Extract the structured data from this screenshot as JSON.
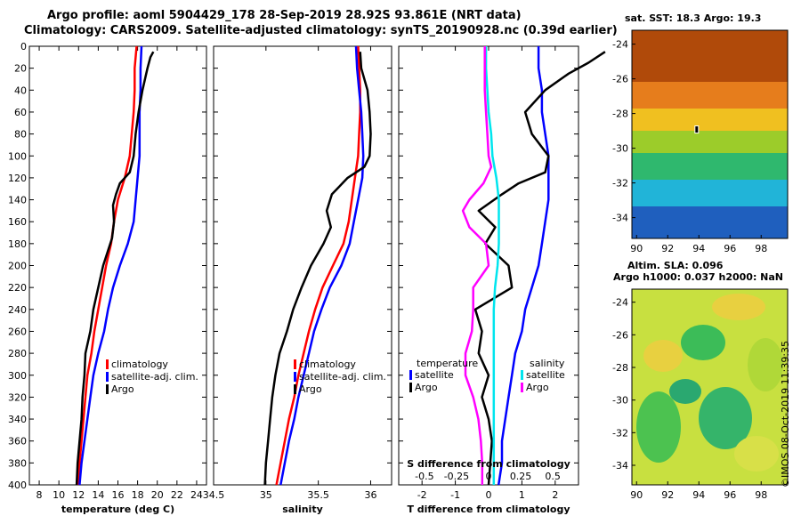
{
  "title": {
    "line1": "Argo profile: aoml 5904429_178 28-Sep-2019 28.92S 93.861E (NRT data)",
    "line2": "Climatology: CARS2009. Satellite-adjusted climatology: synTS_20190928.nc (0.39d earlier)"
  },
  "credit": "©IMOS 08-Oct-2019 11:39:35",
  "chart_data": [
    {
      "type": "line",
      "name": "temperature",
      "xlabel": "temperature (deg C)",
      "ylabel": "depth",
      "xlim": [
        7,
        25
      ],
      "ylim": [
        400,
        0
      ],
      "xticks": [
        8,
        10,
        12,
        14,
        16,
        18,
        20,
        22,
        24
      ],
      "yticks": [
        0,
        20,
        40,
        60,
        80,
        100,
        120,
        140,
        160,
        180,
        200,
        220,
        240,
        260,
        280,
        300,
        320,
        340,
        360,
        380,
        400
      ],
      "legend": [
        "climatology",
        "satellite-adj. clim.",
        "Argo"
      ],
      "series": [
        {
          "name": "climatology",
          "color": "#ff0000",
          "depth": [
            0,
            20,
            40,
            60,
            80,
            100,
            120,
            140,
            160,
            180,
            200,
            220,
            240,
            260,
            280,
            300,
            320,
            340,
            360,
            380,
            400
          ],
          "values": [
            17.9,
            17.7,
            17.7,
            17.6,
            17.4,
            17.2,
            16.7,
            16.0,
            15.6,
            15.3,
            14.8,
            14.4,
            14.0,
            13.6,
            13.3,
            12.9,
            12.7,
            12.5,
            12.3,
            12.1,
            11.9
          ]
        },
        {
          "name": "satellite-adj. clim.",
          "color": "#0000ff",
          "depth": [
            0,
            20,
            40,
            60,
            80,
            100,
            120,
            140,
            160,
            180,
            200,
            220,
            240,
            260,
            280,
            300,
            320,
            340,
            360,
            380,
            400
          ],
          "values": [
            18.4,
            18.3,
            18.3,
            18.2,
            18.2,
            18.2,
            18.0,
            17.8,
            17.6,
            17.0,
            16.2,
            15.5,
            15.0,
            14.6,
            14.0,
            13.5,
            13.2,
            12.9,
            12.6,
            12.3,
            12.1
          ]
        },
        {
          "name": "Argo",
          "color": "#000000",
          "depth": [
            5,
            10,
            20,
            40,
            60,
            80,
            100,
            115,
            125,
            135,
            145,
            160,
            175,
            200,
            220,
            240,
            260,
            280,
            300,
            320,
            340,
            360,
            380,
            400
          ],
          "values": [
            19.6,
            19.3,
            19.0,
            18.5,
            18.1,
            17.8,
            17.6,
            17.2,
            16.2,
            15.8,
            15.5,
            15.6,
            15.4,
            14.5,
            14.0,
            13.5,
            13.2,
            12.7,
            12.6,
            12.4,
            12.3,
            12.1,
            11.9,
            11.8
          ]
        }
      ]
    },
    {
      "type": "line",
      "name": "salinity",
      "xlabel": "salinity",
      "ylabel": "depth",
      "xlim": [
        34.5,
        36.2
      ],
      "ylim": [
        400,
        0
      ],
      "xticks": [
        34.5,
        35,
        35.5,
        36
      ],
      "legend": [
        "climatology",
        "satellite-adj. clim.",
        "Argo"
      ],
      "series": [
        {
          "name": "climatology",
          "color": "#ff0000",
          "depth": [
            0,
            20,
            40,
            60,
            80,
            100,
            120,
            140,
            160,
            180,
            200,
            220,
            240,
            260,
            280,
            300,
            320,
            340,
            360,
            380,
            400
          ],
          "values": [
            35.88,
            35.89,
            35.9,
            35.9,
            35.89,
            35.88,
            35.85,
            35.82,
            35.79,
            35.74,
            35.64,
            35.54,
            35.47,
            35.41,
            35.36,
            35.31,
            35.27,
            35.22,
            35.18,
            35.14,
            35.1
          ]
        },
        {
          "name": "satellite-adj. clim.",
          "color": "#0000ff",
          "depth": [
            0,
            20,
            40,
            60,
            80,
            100,
            120,
            140,
            160,
            180,
            200,
            220,
            240,
            260,
            280,
            300,
            320,
            340,
            360,
            380,
            400
          ],
          "values": [
            35.86,
            35.87,
            35.89,
            35.91,
            35.92,
            35.93,
            35.92,
            35.88,
            35.84,
            35.8,
            35.72,
            35.61,
            35.53,
            35.46,
            35.41,
            35.36,
            35.31,
            35.27,
            35.22,
            35.18,
            35.14
          ]
        },
        {
          "name": "Argo",
          "color": "#000000",
          "depth": [
            5,
            20,
            40,
            60,
            80,
            100,
            110,
            120,
            135,
            150,
            165,
            180,
            200,
            220,
            240,
            260,
            280,
            300,
            320,
            340,
            360,
            380,
            400
          ],
          "values": [
            35.9,
            35.91,
            35.97,
            35.99,
            36.0,
            35.99,
            35.94,
            35.78,
            35.63,
            35.58,
            35.62,
            35.55,
            35.43,
            35.34,
            35.26,
            35.2,
            35.13,
            35.09,
            35.06,
            35.04,
            35.02,
            35.0,
            34.99
          ]
        }
      ]
    },
    {
      "type": "line",
      "name": "difference from climatology",
      "xlabel": "T difference from climatology",
      "xlabel_top": "S difference from climatology",
      "ylabel": "depth",
      "xlim": [
        -2.7,
        2.7
      ],
      "xlim_top": [
        -0.7,
        0.7
      ],
      "ylim": [
        400,
        0
      ],
      "xticks": [
        -2,
        -1,
        0,
        1,
        2
      ],
      "xticks_top": [
        -0.5,
        -0.25,
        0,
        0.25,
        0.5
      ],
      "xtick_labels_top": [
        "-0.5",
        "-0.25",
        "0",
        "0.25",
        "0.5"
      ],
      "legend_temperature_title": "temperature",
      "legend_salinity_title": "salinity",
      "legend_temperature": [
        "satellite",
        "Argo"
      ],
      "legend_salinity": [
        "satellite",
        "Argo"
      ],
      "series": [
        {
          "name": "satellite (temperature)",
          "color": "#0000ff",
          "axis": "T",
          "depth": [
            0,
            20,
            40,
            60,
            80,
            100,
            120,
            140,
            160,
            180,
            200,
            220,
            240,
            260,
            280,
            300,
            320,
            340,
            360,
            380,
            400
          ],
          "values": [
            1.5,
            1.5,
            1.6,
            1.6,
            1.7,
            1.8,
            1.8,
            1.8,
            1.7,
            1.6,
            1.5,
            1.3,
            1.1,
            1.0,
            0.8,
            0.7,
            0.6,
            0.5,
            0.4,
            0.4,
            0.3
          ]
        },
        {
          "name": "Argo (temperature)",
          "color": "#000000",
          "axis": "T",
          "depth": [
            5,
            15,
            25,
            40,
            60,
            80,
            100,
            115,
            125,
            135,
            150,
            165,
            180,
            200,
            220,
            240,
            260,
            280,
            300,
            320,
            340,
            360,
            380,
            400
          ],
          "values": [
            3.5,
            3.0,
            2.4,
            1.7,
            1.1,
            1.3,
            1.8,
            1.7,
            0.9,
            0.4,
            -0.3,
            0.2,
            -0.1,
            0.6,
            0.7,
            -0.4,
            -0.2,
            -0.3,
            0.0,
            -0.2,
            0.0,
            0.1,
            0.05,
            0.0
          ]
        },
        {
          "name": "satellite (salinity)",
          "color": "#00e5ee",
          "axis": "S",
          "depth": [
            0,
            20,
            40,
            60,
            80,
            100,
            120,
            140,
            160,
            180,
            200,
            220,
            240,
            260,
            280,
            300,
            320,
            340,
            360,
            380,
            400
          ],
          "values": [
            -0.02,
            -0.02,
            -0.01,
            0.0,
            0.02,
            0.03,
            0.06,
            0.08,
            0.08,
            0.08,
            0.07,
            0.05,
            0.04,
            0.04,
            0.04,
            0.04,
            0.04,
            0.04,
            0.04,
            0.04,
            0.04
          ]
        },
        {
          "name": "Argo (salinity)",
          "color": "#ff00ff",
          "axis": "S",
          "depth": [
            0,
            20,
            40,
            60,
            80,
            100,
            110,
            125,
            140,
            150,
            165,
            180,
            200,
            220,
            240,
            260,
            280,
            300,
            320,
            340,
            360,
            380,
            400
          ],
          "values": [
            -0.03,
            -0.03,
            -0.03,
            -0.02,
            -0.01,
            0.0,
            0.02,
            -0.04,
            -0.15,
            -0.2,
            -0.15,
            -0.02,
            0.0,
            -0.12,
            -0.12,
            -0.13,
            -0.18,
            -0.18,
            -0.12,
            -0.08,
            -0.06,
            -0.05,
            -0.05
          ]
        }
      ]
    },
    {
      "type": "heatmap",
      "name": "sat. SST map",
      "title": "sat. SST: 18.3 Argo: 19.3",
      "xticks": [
        90,
        92,
        94,
        96,
        98
      ],
      "yticks": [
        -24,
        -26,
        -28,
        -30,
        -32,
        -34
      ],
      "xlim": [
        89.7,
        99.7
      ],
      "ylim": [
        -35.2,
        -23.2
      ],
      "marker": {
        "lon": 93.861,
        "lat": -28.92
      }
    },
    {
      "type": "heatmap",
      "name": "Altimetry SLA map",
      "title": "Altim. SLA: 0.096",
      "subtitle": "Argo h1000: 0.037 h2000: NaN",
      "xticks": [
        90,
        92,
        94,
        96,
        98
      ],
      "yticks": [
        -24,
        -26,
        -28,
        -30,
        -32,
        -34
      ],
      "xlim": [
        89.7,
        99.7
      ],
      "ylim": [
        -35.2,
        -23.2
      ]
    }
  ]
}
